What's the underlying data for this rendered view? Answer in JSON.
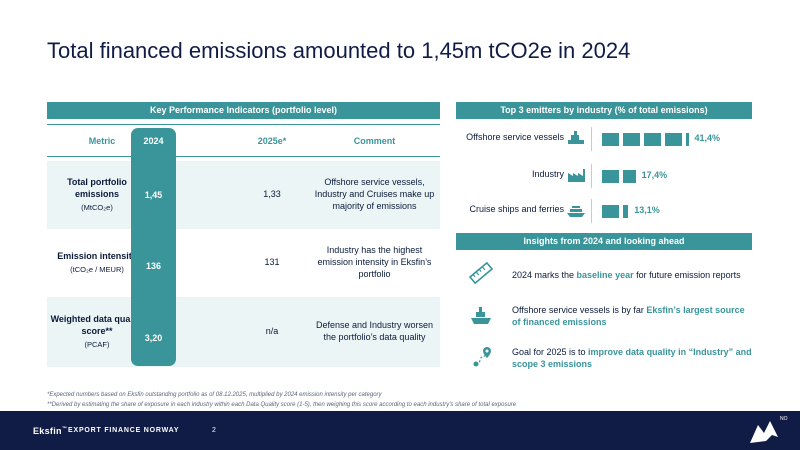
{
  "title": "Total financed emissions amounted to 1,45m tCO2e in 2024",
  "kpi": {
    "header": "Key Performance Indicators (portfolio level)",
    "columns": [
      "Metric",
      "2024",
      "2025e*",
      "Comment"
    ],
    "rows": [
      {
        "metric": "Total portfolio emissions",
        "unit": "(MtCO₂e)",
        "v2024": "1,45",
        "v2025": "1,33",
        "comment": "Offshore service vessels, Industry and Cruises make up majority of emissions"
      },
      {
        "metric": "Emission intensity",
        "unit": "(tCO₂e / MEUR)",
        "v2024": "136",
        "v2025": "131",
        "comment": "Industry has the highest emission intensity in Eksfin’s portfolio"
      },
      {
        "metric": "Weighted data quality score**",
        "unit": "(PCAF)",
        "v2024": "3,20",
        "v2025": "n/a",
        "comment": "Defense and Industry worsen the portfolio’s data quality"
      }
    ]
  },
  "emitters": {
    "header": "Top 3 emitters by industry (% of total emissions)",
    "items": [
      {
        "label": "Offshore service vessels",
        "value": 41.4,
        "value_text": "41,4%",
        "icon": "ship-icon"
      },
      {
        "label": "Industry",
        "value": 17.4,
        "value_text": "17,4%",
        "icon": "factory-icon"
      },
      {
        "label": "Cruise ships and ferries",
        "value": 13.1,
        "value_text": "13,1%",
        "icon": "cruise-ship-icon"
      }
    ]
  },
  "insights": {
    "header": "Insights from 2024 and looking ahead",
    "items": [
      {
        "icon": "ruler-icon",
        "pre": "2024 marks the ",
        "hl": "baseline year",
        "post": " for future emission reports"
      },
      {
        "icon": "vessel-icon",
        "pre": "Offshore service vessels is by far ",
        "hl": "Eksfin’s largest source of financed emissions",
        "post": ""
      },
      {
        "icon": "route-icon",
        "pre": "Goal for 2025 is to ",
        "hl": "improve data quality in “Industry” and scope 3 emissions",
        "post": ""
      }
    ]
  },
  "footnotes": [
    "*Expected numbers based on Eksfin outstanding portfolio as of 08.12.2025, multiplied by 2024 emission intensity per category",
    "**Derived by estimating the share of exposure in each industry within each Data Quality score (1-5), then weighing this score according to each industry’s share of total exposure"
  ],
  "footer": {
    "logo": "Eksfin",
    "tm": "™",
    "subtitle": "EXPORT FINANCE NORWAY",
    "page": "2",
    "mark_text": "NO"
  },
  "colors": {
    "accent": "#3a959a",
    "navy": "#101c45",
    "row_shade": "#ecf5f5"
  }
}
